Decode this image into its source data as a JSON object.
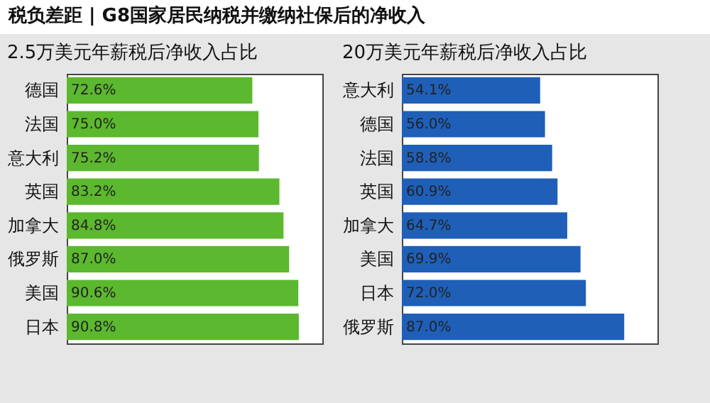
{
  "chart_data": [
    {
      "type": "bar",
      "orientation": "horizontal",
      "title": "税负差距 | G8国家居民纳税并缴纳社保后的净收入",
      "subtitle": "2.5万美元年薪税后净收入占比",
      "categories": [
        "德国",
        "法国",
        "意大利",
        "英国",
        "加拿大",
        "俄罗斯",
        "美国",
        "日本"
      ],
      "values": [
        72.6,
        75.0,
        75.2,
        83.2,
        84.8,
        87.0,
        90.6,
        90.8
      ],
      "value_labels": [
        "72.6%",
        "75.0%",
        "75.2%",
        "83.2%",
        "84.8%",
        "87.0%",
        "90.6%",
        "90.8%"
      ],
      "color": "#5cb82e",
      "xlim": [
        0,
        100
      ],
      "tick_labels": "y"
    },
    {
      "type": "bar",
      "orientation": "horizontal",
      "subtitle": "20万美元年薪税后净收入占比",
      "categories": [
        "意大利",
        "德国",
        "法国",
        "英国",
        "加拿大",
        "美国",
        "日本",
        "俄罗斯"
      ],
      "values": [
        54.1,
        56.0,
        58.8,
        60.9,
        64.7,
        69.9,
        72.0,
        87.0
      ],
      "value_labels": [
        "54.1%",
        "56.0%",
        "58.8%",
        "60.9%",
        "64.7%",
        "69.9%",
        "72.0%",
        "87.0%"
      ],
      "color": "#1f5fb8",
      "xlim": [
        0,
        100
      ],
      "tick_labels": "y"
    }
  ]
}
